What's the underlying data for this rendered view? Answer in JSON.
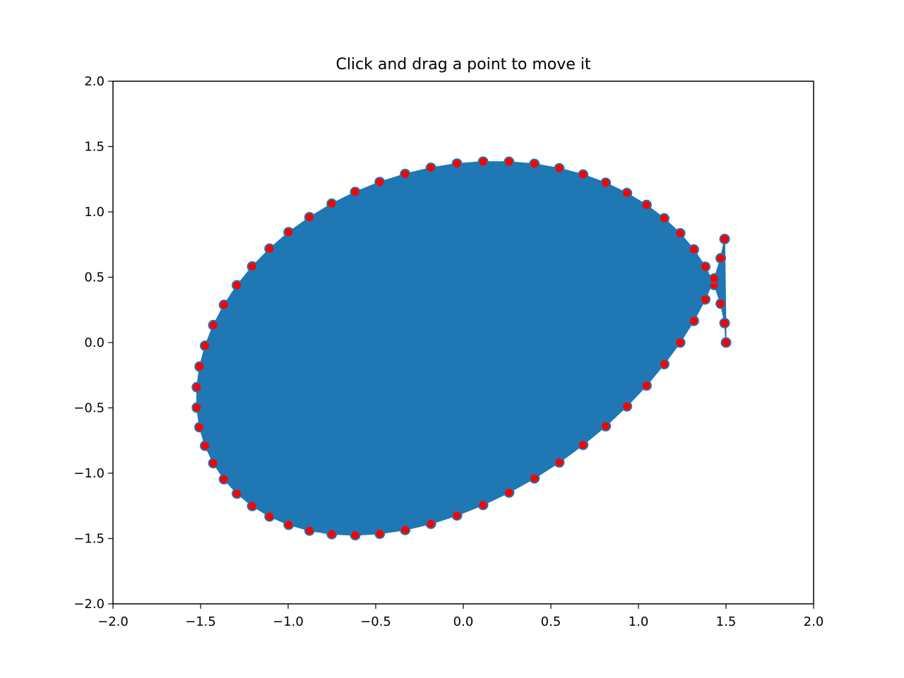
{
  "chart_data": {
    "type": "scatter",
    "title": "Click and drag a point to move it",
    "xlabel": "",
    "ylabel": "",
    "xlim": [
      -2.0,
      2.0
    ],
    "ylim": [
      -2.0,
      2.0
    ],
    "grid": false,
    "x_ticks": [
      -2.0,
      -1.5,
      -1.0,
      -0.5,
      0.0,
      0.5,
      1.0,
      1.5,
      2.0
    ],
    "x_tick_labels": [
      "−2.0",
      "−1.5",
      "−1.0",
      "−0.5",
      "0.0",
      "0.5",
      "1.0",
      "1.5",
      "2.0"
    ],
    "y_ticks": [
      -2.0,
      -1.5,
      -1.0,
      -0.5,
      0.0,
      0.5,
      1.0,
      1.5,
      2.0
    ],
    "y_tick_labels": [
      "−2.0",
      "−1.5",
      "−1.0",
      "−0.5",
      "0.0",
      "0.5",
      "1.0",
      "1.5",
      "2.0"
    ],
    "polygon_color": "#1f77b4",
    "marker_face_color": "#ff0000",
    "marker_edge_color": "#1f77b4",
    "points": {
      "x": [
        1.5,
        1.492,
        1.47,
        1.433,
        1.381,
        1.316,
        1.238,
        1.147,
        1.046,
        0.934,
        0.813,
        0.684,
        0.548,
        0.406,
        0.261,
        0.113,
        -0.036,
        -0.185,
        -0.332,
        -0.477,
        -0.617,
        -0.751,
        -0.878,
        -0.997,
        -1.106,
        -1.205,
        -1.292,
        -1.366,
        -1.427,
        -1.474,
        -1.505,
        -1.521,
        -1.521,
        -1.506,
        -1.474,
        -1.427,
        -1.366,
        -1.292,
        -1.205,
        -1.106,
        -0.997,
        -0.878,
        -0.751,
        -0.617,
        -0.477,
        -0.332,
        -0.185,
        -0.036,
        0.113,
        0.261,
        0.406,
        0.548,
        0.684,
        0.813,
        0.934,
        1.046,
        1.147,
        1.238,
        1.316,
        1.381,
        1.433,
        1.47,
        1.492
      ],
      "y": [
        0.0,
        0.149,
        0.297,
        0.441,
        0.58,
        0.712,
        0.836,
        0.95,
        1.053,
        1.144,
        1.222,
        1.285,
        1.333,
        1.367,
        1.383,
        1.384,
        1.369,
        1.337,
        1.29,
        1.228,
        1.152,
        1.062,
        0.959,
        0.844,
        0.718,
        0.582,
        0.438,
        0.288,
        0.133,
        -0.025,
        -0.184,
        -0.342,
        -0.498,
        -0.648,
        -0.79,
        -0.923,
        -1.046,
        -1.156,
        -1.251,
        -1.331,
        -1.394,
        -1.439,
        -1.466,
        -1.474,
        -1.463,
        -1.434,
        -1.387,
        -1.323,
        -1.243,
        -1.148,
        -1.039,
        -0.917,
        -0.783,
        -0.64,
        -0.488,
        -0.329,
        -0.165,
        0.0,
        0.166,
        0.33,
        0.49,
        0.645,
        0.792
      ]
    }
  }
}
